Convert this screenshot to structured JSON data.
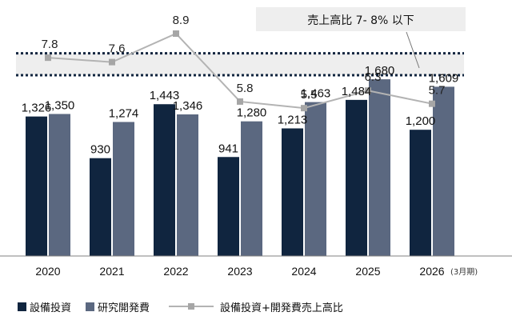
{
  "chart_data": {
    "type": "bar+line",
    "categories": [
      "2020",
      "2021",
      "2022",
      "2023",
      "2024",
      "2025",
      "2026"
    ],
    "category_suffix": {
      "index": 6,
      "text": "(3月期)"
    },
    "series": [
      {
        "name": "設備投資",
        "type": "bar",
        "color": "#10253f",
        "values": [
          1326,
          930,
          1443,
          941,
          1213,
          1484,
          1200
        ],
        "labels": [
          "1,326",
          "930",
          "1,443",
          "941",
          "1,213",
          "1,484",
          "1,200"
        ]
      },
      {
        "name": "研究開発費",
        "type": "bar",
        "color": "#5b6880",
        "values": [
          1350,
          1274,
          1346,
          1280,
          1463,
          1680,
          1609
        ],
        "labels": [
          "1,350",
          "1,274",
          "1,346",
          "1,280",
          "1,463",
          "1,680",
          "1,609"
        ]
      },
      {
        "name": "設備投資+開発費売上高比",
        "type": "line",
        "color": "#a6a6a6",
        "values": [
          7.8,
          7.6,
          8.9,
          5.8,
          5.5,
          6.3,
          5.7
        ],
        "labels": [
          "7.8",
          "7.6",
          "8.9",
          "5.8",
          "5.5",
          "6.3",
          "5.7"
        ]
      }
    ],
    "bar_range": [
      0,
      1800
    ],
    "line_range": [
      0,
      10.4
    ],
    "target_band": {
      "from": 7.0,
      "to": 8.0,
      "label": "売上高比 7- 8% 以下"
    },
    "legend_position": "bottom",
    "grid": false
  }
}
